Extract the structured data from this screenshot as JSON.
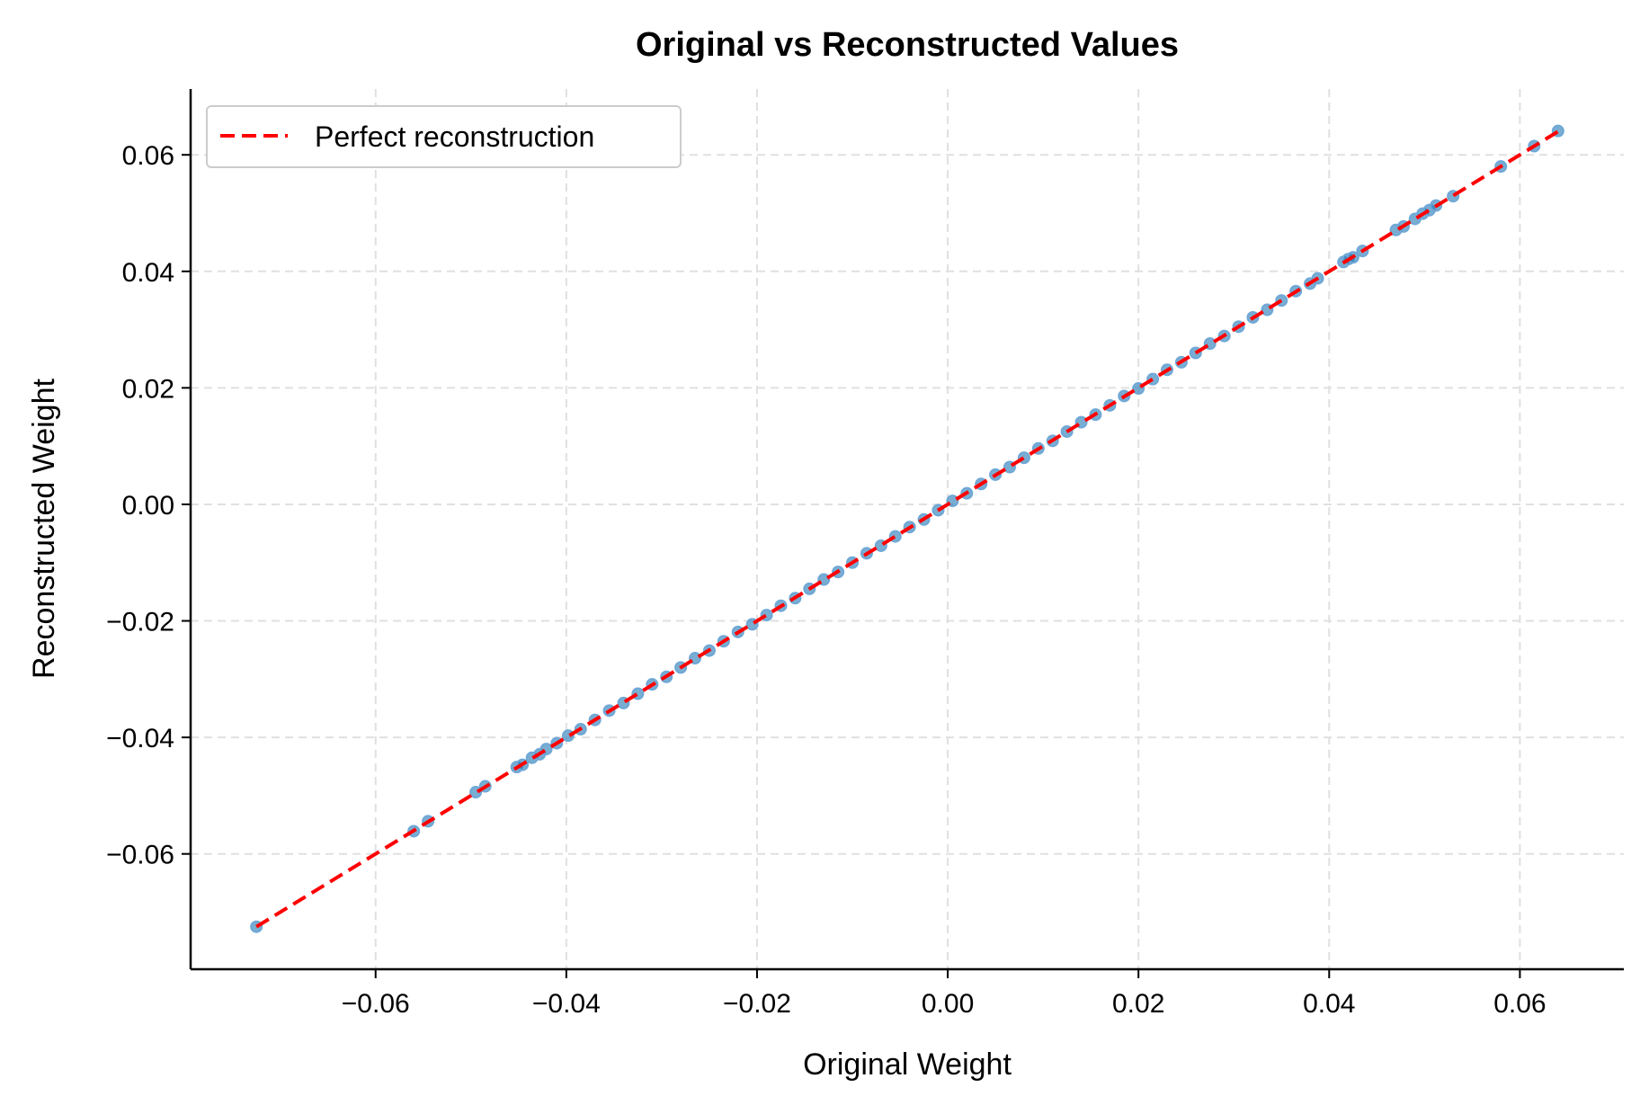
{
  "chart_data": {
    "type": "scatter",
    "title": "Original vs Reconstructed Values",
    "xlabel": "Original Weight",
    "ylabel": "Reconstructed Weight",
    "xlim": [
      -0.0794,
      0.0709
    ],
    "ylim": [
      -0.0798,
      0.0713
    ],
    "xticks": [
      -0.06,
      -0.04,
      -0.02,
      0.0,
      0.02,
      0.04,
      0.06
    ],
    "xtick_labels": [
      "−0.06",
      "−0.04",
      "−0.02",
      "0.00",
      "0.02",
      "0.04",
      "0.06"
    ],
    "yticks": [
      -0.06,
      -0.04,
      -0.02,
      0.0,
      0.02,
      0.04,
      0.06
    ],
    "ytick_labels": [
      "−0.06",
      "−0.04",
      "−0.02",
      "0.00",
      "0.02",
      "0.04",
      "0.06"
    ],
    "grid": true,
    "legend": {
      "placement": "top-left",
      "entries": [
        "Perfect reconstruction"
      ]
    },
    "reference_line": {
      "name": "Perfect reconstruction",
      "from": [
        -0.0725,
        -0.0725
      ],
      "to": [
        0.064,
        0.064
      ],
      "color": "#ff0000",
      "style": "dashed"
    },
    "marker_color": "#1f77b4",
    "points": [
      [
        -0.0725,
        -0.0725
      ],
      [
        -0.056,
        -0.0561
      ],
      [
        -0.0545,
        -0.0544
      ],
      [
        -0.0495,
        -0.0494
      ],
      [
        -0.0485,
        -0.0484
      ],
      [
        -0.0452,
        -0.0451
      ],
      [
        -0.0446,
        -0.0447
      ],
      [
        -0.0436,
        -0.0435
      ],
      [
        -0.0428,
        -0.0429
      ],
      [
        -0.0421,
        -0.042
      ],
      [
        -0.041,
        -0.041
      ],
      [
        -0.0398,
        -0.0397
      ],
      [
        -0.0385,
        -0.0386
      ],
      [
        -0.037,
        -0.037
      ],
      [
        -0.0355,
        -0.0354
      ],
      [
        -0.034,
        -0.0341
      ],
      [
        -0.0325,
        -0.0325
      ],
      [
        -0.031,
        -0.0309
      ],
      [
        -0.0295,
        -0.0296
      ],
      [
        -0.028,
        -0.028
      ],
      [
        -0.0265,
        -0.0264
      ],
      [
        -0.025,
        -0.0251
      ],
      [
        -0.0235,
        -0.0235
      ],
      [
        -0.022,
        -0.0219
      ],
      [
        -0.0205,
        -0.0206
      ],
      [
        -0.019,
        -0.019
      ],
      [
        -0.0175,
        -0.0174
      ],
      [
        -0.016,
        -0.0161
      ],
      [
        -0.0145,
        -0.0145
      ],
      [
        -0.013,
        -0.0129
      ],
      [
        -0.0115,
        -0.0116
      ],
      [
        -0.01,
        -0.01
      ],
      [
        -0.0085,
        -0.0084
      ],
      [
        -0.007,
        -0.0071
      ],
      [
        -0.0055,
        -0.0055
      ],
      [
        -0.004,
        -0.0039
      ],
      [
        -0.0025,
        -0.0026
      ],
      [
        -0.001,
        -0.001
      ],
      [
        0.0005,
        0.0006
      ],
      [
        0.002,
        0.0019
      ],
      [
        0.0035,
        0.0035
      ],
      [
        0.005,
        0.0051
      ],
      [
        0.0065,
        0.0064
      ],
      [
        0.008,
        0.008
      ],
      [
        0.0095,
        0.0096
      ],
      [
        0.011,
        0.0109
      ],
      [
        0.0125,
        0.0125
      ],
      [
        0.014,
        0.0141
      ],
      [
        0.0155,
        0.0154
      ],
      [
        0.017,
        0.017
      ],
      [
        0.0185,
        0.0186
      ],
      [
        0.02,
        0.0199
      ],
      [
        0.0215,
        0.0215
      ],
      [
        0.023,
        0.0231
      ],
      [
        0.0245,
        0.0244
      ],
      [
        0.026,
        0.026
      ],
      [
        0.0275,
        0.0276
      ],
      [
        0.029,
        0.0289
      ],
      [
        0.0305,
        0.0305
      ],
      [
        0.032,
        0.0321
      ],
      [
        0.0335,
        0.0334
      ],
      [
        0.035,
        0.035
      ],
      [
        0.0365,
        0.0366
      ],
      [
        0.038,
        0.0379
      ],
      [
        0.0388,
        0.0388
      ],
      [
        0.0415,
        0.0416
      ],
      [
        0.042,
        0.0421
      ],
      [
        0.0425,
        0.0424
      ],
      [
        0.0435,
        0.0435
      ],
      [
        0.047,
        0.0471
      ],
      [
        0.0478,
        0.0477
      ],
      [
        0.049,
        0.049
      ],
      [
        0.0498,
        0.0499
      ],
      [
        0.0505,
        0.0505
      ],
      [
        0.0512,
        0.0513
      ],
      [
        0.053,
        0.0529
      ],
      [
        0.058,
        0.058
      ],
      [
        0.0615,
        0.0615
      ],
      [
        0.064,
        0.0641
      ]
    ]
  }
}
